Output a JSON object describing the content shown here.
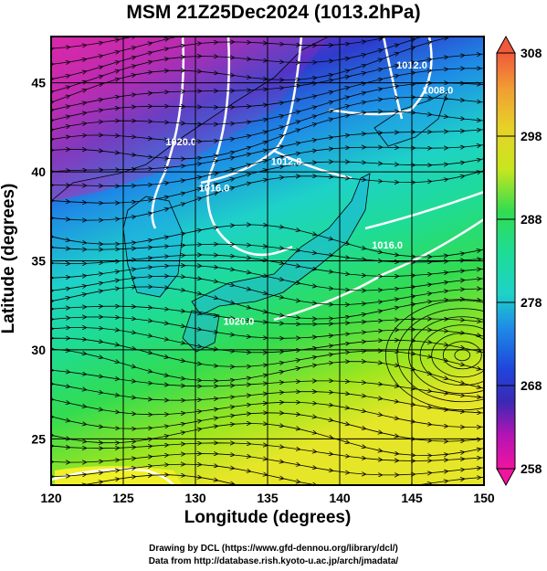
{
  "title": "MSM 21Z25Dec2024 (1013.2hPa)",
  "x_axis": {
    "title": "Longitude (degrees)",
    "ticks": [
      "120",
      "125",
      "130",
      "135",
      "140",
      "145",
      "150"
    ],
    "range": [
      120,
      150
    ]
  },
  "y_axis": {
    "title": "Latitude  (degrees)",
    "ticks": [
      "25",
      "30",
      "35",
      "40",
      "45"
    ],
    "range": [
      22.4,
      47.6
    ]
  },
  "colorbar": {
    "range": [
      258,
      308
    ],
    "ticks": [
      "308",
      "298",
      "288",
      "278",
      "268",
      "258"
    ],
    "colors": [
      "#f05a3c",
      "#f0a032",
      "#e6d228",
      "#c8e61e",
      "#82e61e",
      "#32dc50",
      "#1edc96",
      "#1ed2c8",
      "#1eaae6",
      "#1e78e6",
      "#1e46dc",
      "#3c28b4",
      "#8c14b4",
      "#d20ab4",
      "#f014a0"
    ]
  },
  "isobars": [
    {
      "label": "1012.0",
      "lon": 136.3,
      "lat": 40.4
    },
    {
      "label": "1016.0",
      "lon": 131.3,
      "lat": 38.9
    },
    {
      "label": "1016.0",
      "lon": 143.3,
      "lat": 35.7
    },
    {
      "label": "1020.0",
      "lon": 129.0,
      "lat": 41.5
    },
    {
      "label": "1020.0",
      "lon": 133.0,
      "lat": 31.4
    },
    {
      "label": "1012.0",
      "lon": 145.0,
      "lat": 45.8
    },
    {
      "label": "1008.0",
      "lon": 146.8,
      "lat": 44.4
    }
  ],
  "credits": {
    "line1": "Drawing by DCL (https://www.gfd-dennou.org/library/dcl/)",
    "line2": "Data from http://database.rish.kyoto-u.ac.jp/arch/jmadata/"
  }
}
